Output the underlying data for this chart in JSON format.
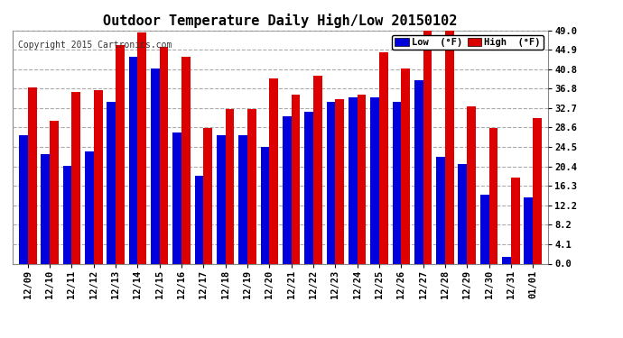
{
  "title": "Outdoor Temperature Daily High/Low 20150102",
  "copyright": "Copyright 2015 Cartronics.com",
  "legend_low": "Low  (°F)",
  "legend_high": "High  (°F)",
  "dates": [
    "12/09",
    "12/10",
    "12/11",
    "12/12",
    "12/13",
    "12/14",
    "12/15",
    "12/16",
    "12/17",
    "12/18",
    "12/19",
    "12/20",
    "12/21",
    "12/22",
    "12/23",
    "12/24",
    "12/25",
    "12/26",
    "12/27",
    "12/28",
    "12/29",
    "12/30",
    "12/31",
    "01/01"
  ],
  "lows": [
    27.0,
    23.0,
    20.5,
    23.5,
    34.0,
    43.5,
    41.0,
    27.5,
    18.5,
    27.0,
    27.0,
    24.5,
    31.0,
    32.0,
    34.0,
    35.0,
    35.0,
    34.0,
    38.5,
    22.5,
    21.0,
    14.5,
    1.5,
    14.0
  ],
  "highs": [
    37.0,
    30.0,
    36.0,
    36.5,
    46.0,
    48.5,
    45.5,
    43.5,
    28.5,
    32.5,
    32.5,
    39.0,
    35.5,
    39.5,
    34.5,
    35.5,
    44.5,
    41.0,
    49.0,
    49.0,
    33.0,
    28.5,
    18.0,
    30.5
  ],
  "ylim": [
    0.0,
    49.0
  ],
  "yticks": [
    0.0,
    4.1,
    8.2,
    12.2,
    16.3,
    20.4,
    24.5,
    28.6,
    32.7,
    36.8,
    40.8,
    44.9,
    49.0
  ],
  "low_color": "#0000dd",
  "high_color": "#dd0000",
  "bg_color": "#ffffff",
  "grid_color": "#aaaaaa",
  "title_fontsize": 11,
  "copyright_fontsize": 7,
  "tick_fontsize": 7.5,
  "bar_width": 0.4,
  "fig_width": 6.9,
  "fig_height": 3.75,
  "dpi": 100
}
